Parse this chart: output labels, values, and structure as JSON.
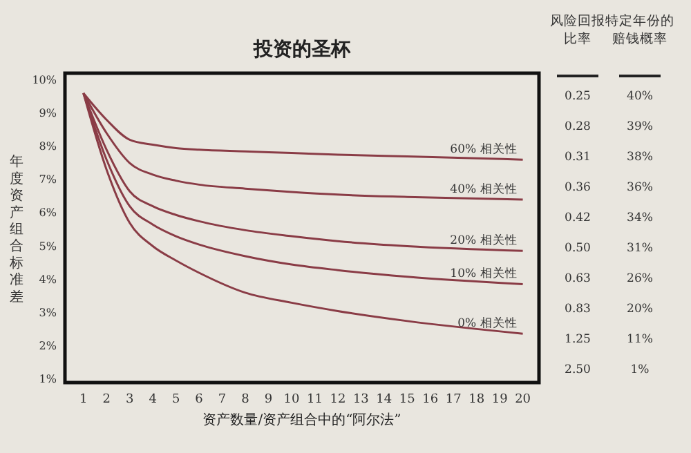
{
  "chart_data": [
    {
      "type": "line",
      "title": "投资的圣杯",
      "xlabel": "资产数量/资产组合中的“阿尔法”",
      "ylabel": "年度资产组合标准差",
      "xlim": [
        0.2,
        20.7
      ],
      "ylim": [
        0.9,
        10.2
      ],
      "xticks": [
        1,
        2,
        3,
        4,
        5,
        6,
        7,
        8,
        9,
        10,
        11,
        12,
        13,
        14,
        15,
        16,
        17,
        18,
        19,
        20
      ],
      "yticks": [
        {
          "value": 1,
          "label": "1%"
        },
        {
          "value": 2,
          "label": "2%"
        },
        {
          "value": 3,
          "label": "3%"
        },
        {
          "value": 4,
          "label": "4%"
        },
        {
          "value": 5,
          "label": "5%"
        },
        {
          "value": 6,
          "label": "6%"
        },
        {
          "value": 7,
          "label": "7%"
        },
        {
          "value": 8,
          "label": "8%"
        },
        {
          "value": 9,
          "label": "9%"
        },
        {
          "value": 10,
          "label": "10%"
        }
      ],
      "grid": false,
      "marker": "none",
      "line_style": "solid",
      "series": [
        {
          "name": "60% 相关性",
          "color": "#8a3c46",
          "x": [
            1,
            2,
            3,
            4,
            5,
            6,
            8,
            10,
            12,
            15,
            20
          ],
          "values": [
            9.6,
            8.8,
            8.2,
            8.05,
            7.95,
            7.9,
            7.85,
            7.8,
            7.75,
            7.7,
            7.6
          ]
        },
        {
          "name": "40% 相关性",
          "color": "#8a3c46",
          "x": [
            1,
            2,
            3,
            4,
            5,
            6,
            8,
            10,
            12,
            15,
            20
          ],
          "values": [
            9.6,
            8.4,
            7.5,
            7.15,
            6.97,
            6.85,
            6.73,
            6.63,
            6.55,
            6.48,
            6.4
          ]
        },
        {
          "name": "20% 相关性",
          "color": "#8a3c46",
          "x": [
            1,
            2,
            3,
            4,
            5,
            6,
            8,
            10,
            12,
            15,
            20
          ],
          "values": [
            9.6,
            7.9,
            6.65,
            6.2,
            5.94,
            5.75,
            5.48,
            5.3,
            5.15,
            5.0,
            4.86
          ]
        },
        {
          "name": "10% 相关性",
          "color": "#8a3c46",
          "x": [
            1,
            2,
            3,
            4,
            5,
            6,
            8,
            10,
            12,
            15,
            20
          ],
          "values": [
            9.6,
            7.6,
            6.2,
            5.65,
            5.3,
            5.05,
            4.7,
            4.45,
            4.28,
            4.08,
            3.86
          ]
        },
        {
          "name": "0% 相关性",
          "color": "#8a3c46",
          "x": [
            1,
            2,
            3,
            4,
            5,
            6,
            8,
            10,
            12,
            15,
            20
          ],
          "values": [
            9.6,
            7.3,
            5.7,
            5.0,
            4.57,
            4.2,
            3.6,
            3.3,
            3.05,
            2.75,
            2.37
          ]
        }
      ]
    },
    {
      "type": "other",
      "annotations": [
        "风险回报比率",
        "特定年份的赔钱概率",
        "0.25",
        "40%",
        "0.28",
        "39%",
        "0.31",
        "38%",
        "0.36",
        "36%",
        "0.42",
        "34%",
        "0.50",
        "31%",
        "0.63",
        "26%",
        "0.83",
        "20%",
        "1.25",
        "11%",
        "2.50",
        "1%"
      ]
    }
  ]
}
